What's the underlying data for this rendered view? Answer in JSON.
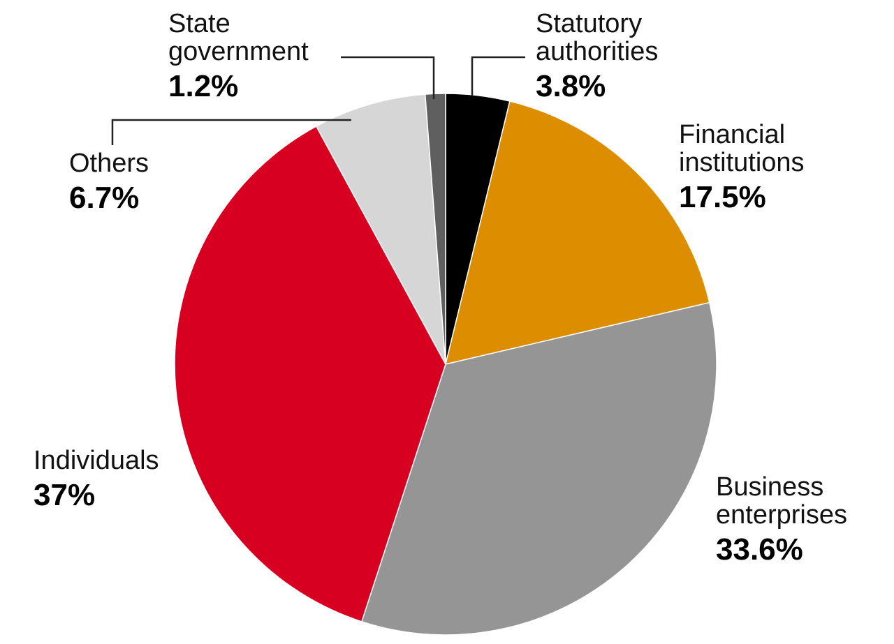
{
  "chart_data": {
    "type": "pie",
    "title": "",
    "slices": [
      {
        "label": [
          "Statutory",
          "authorities"
        ],
        "value": 3.8,
        "value_label": "3.8%",
        "color": "#000000"
      },
      {
        "label": [
          "Financial",
          "institutions"
        ],
        "value": 17.5,
        "value_label": "17.5%",
        "color": "#dc8e00"
      },
      {
        "label": [
          "Business",
          "enterprises"
        ],
        "value": 33.6,
        "value_label": "33.6%",
        "color": "#959595"
      },
      {
        "label": [
          "Individuals"
        ],
        "value": 37,
        "value_label": "37%",
        "color": "#d80021"
      },
      {
        "label": [
          "Others"
        ],
        "value": 6.7,
        "value_label": "6.7%",
        "color": "#d6d6d6"
      },
      {
        "label": [
          "State",
          "government"
        ],
        "value": 1.2,
        "value_label": "1.2%",
        "color": "#5f5f5f"
      }
    ],
    "start_angle": "12 o'clock",
    "direction": "clockwise",
    "legend": "none (direct labels)"
  }
}
